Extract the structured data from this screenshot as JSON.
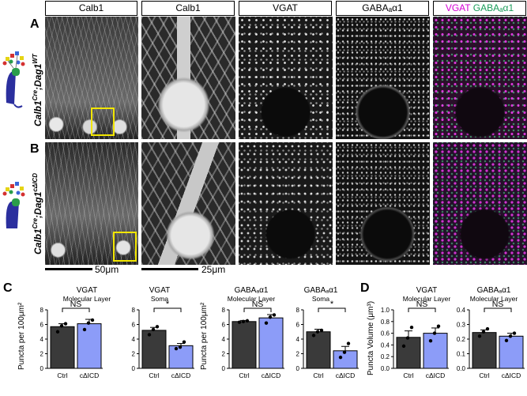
{
  "headers": [
    "Calb1",
    "Calb1",
    "VGAT",
    "GABAₐα1"
  ],
  "merge_header": {
    "part1": "VGAT",
    "part2": " GABAₐα1"
  },
  "panel_letters": {
    "a": "A",
    "b": "B",
    "c": "C",
    "d": "D"
  },
  "row_labels": {
    "a": {
      "base": "Calb1",
      "sup1": "Cre",
      "mid": ";Dag1",
      "sup2": "WT"
    },
    "b": {
      "base": "Calb1",
      "sup1": "Cre",
      "mid": ";Dag1",
      "sup2": "cΔICD"
    }
  },
  "scale_bars": {
    "left": "50μm",
    "right": "25μm"
  },
  "colors": {
    "ctrl": "#3a3a3a",
    "cicd": "#8c9cf8",
    "magenta": "#d400d4",
    "green": "#1a9c5a",
    "box": "#f2e600"
  },
  "ylabels": {
    "c": "Puncta per 100μm²",
    "d": "Puncta Volume (μm³)"
  },
  "chart_data": [
    {
      "type": "bar",
      "title": "VGAT",
      "subtitle": "Molecular Layer",
      "categories": [
        "Ctrl",
        "cΔICD"
      ],
      "values": [
        5.7,
        6.1
      ],
      "errors": [
        0.4,
        0.6
      ],
      "points": [
        [
          5.0,
          5.8,
          6.1
        ],
        [
          5.3,
          6.2,
          6.6
        ]
      ],
      "ylim": [
        0,
        8
      ],
      "yticks": [
        0,
        2,
        4,
        6,
        8
      ],
      "sig": "NS"
    },
    {
      "type": "bar",
      "title": "VGAT",
      "subtitle": "Soma",
      "categories": [
        "Ctrl",
        "cΔICD"
      ],
      "values": [
        5.2,
        3.1
      ],
      "errors": [
        0.4,
        0.3
      ],
      "points": [
        [
          4.6,
          5.3,
          5.7
        ],
        [
          2.7,
          2.9,
          3.6
        ]
      ],
      "ylim": [
        0,
        8
      ],
      "yticks": [
        0,
        2,
        4,
        6,
        8
      ],
      "sig": "*"
    },
    {
      "type": "bar",
      "title": "GABAₐα1",
      "subtitle": "Molecular Layer",
      "categories": [
        "Ctrl",
        "cΔICD"
      ],
      "values": [
        6.4,
        6.9
      ],
      "errors": [
        0.15,
        0.45
      ],
      "points": [
        [
          6.3,
          6.4,
          6.5
        ],
        [
          6.2,
          7.0,
          7.3
        ]
      ],
      "ylim": [
        0,
        8
      ],
      "yticks": [
        0,
        2,
        4,
        6,
        8
      ],
      "sig": "NS"
    },
    {
      "type": "bar",
      "title": "GABAₐα1",
      "subtitle": "Soma",
      "categories": [
        "Ctrl",
        "cΔICD"
      ],
      "values": [
        5.0,
        2.4
      ],
      "errors": [
        0.35,
        0.6
      ],
      "points": [
        [
          4.5,
          5.0,
          5.2
        ],
        [
          1.5,
          2.2,
          3.4
        ]
      ],
      "ylim": [
        0,
        8
      ],
      "yticks": [
        0,
        2,
        4,
        6,
        8
      ],
      "sig": "*"
    },
    {
      "type": "bar",
      "title": "VGAT",
      "subtitle": "Molecular Layer",
      "categories": [
        "Ctrl",
        "cΔICD"
      ],
      "values": [
        0.53,
        0.6
      ],
      "errors": [
        0.11,
        0.09
      ],
      "points": [
        [
          0.38,
          0.52,
          0.7
        ],
        [
          0.47,
          0.6,
          0.72
        ]
      ],
      "ylim": [
        0,
        1.0
      ],
      "yticks": [
        0.0,
        0.2,
        0.4,
        0.6,
        0.8,
        1.0
      ],
      "sig": "NS"
    },
    {
      "type": "bar",
      "title": "GABAₐα1",
      "subtitle": "Molecular Layer",
      "categories": [
        "Ctrl",
        "cΔICD"
      ],
      "values": [
        0.245,
        0.22
      ],
      "errors": [
        0.018,
        0.02
      ],
      "points": [
        [
          0.22,
          0.25,
          0.27
        ],
        [
          0.19,
          0.22,
          0.24
        ]
      ],
      "ylim": [
        0,
        0.4
      ],
      "yticks": [
        0.0,
        0.1,
        0.2,
        0.3,
        0.4
      ],
      "sig": "NS"
    }
  ]
}
